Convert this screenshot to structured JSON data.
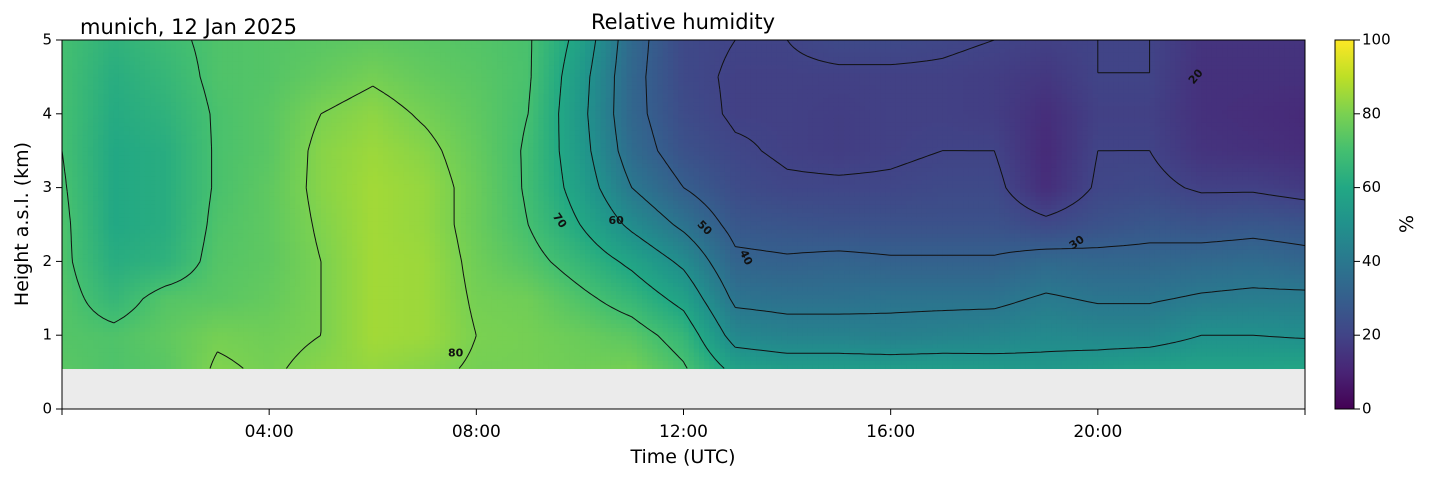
{
  "chart_data": {
    "type": "heatmap",
    "title": "Relative humidity",
    "location_date": "munich, 12 Jan 2025",
    "xlabel": "Time (UTC)",
    "ylabel": "Height a.s.l. (km)",
    "colorbar_label": "%",
    "colormap": "viridis",
    "x_range_hours": [
      0,
      24
    ],
    "ylim": [
      0,
      5
    ],
    "data_bottom_km": 0.55,
    "x_ticks": [
      "04:00",
      "08:00",
      "12:00",
      "16:00",
      "20:00"
    ],
    "y_ticks": [
      "0",
      "1",
      "2",
      "3",
      "4",
      "5"
    ],
    "colorbar_range": [
      0,
      100
    ],
    "colorbar_ticks": [
      "0",
      "20",
      "40",
      "60",
      "80",
      "100"
    ],
    "no_data_color": "#ebebeb",
    "contour_levels": [
      20,
      30,
      40,
      50,
      60,
      70,
      80
    ],
    "contour_labels": [
      "80",
      "70",
      "60",
      "50",
      "40",
      "30",
      "20"
    ],
    "profile_hours": [
      0,
      1,
      2,
      3,
      4,
      5,
      6,
      7,
      8,
      9,
      10,
      11,
      12,
      13,
      14,
      15,
      16,
      17,
      18,
      19,
      20,
      21,
      22,
      23,
      24
    ],
    "profile_heights_km": [
      0.55,
      1.0,
      1.5,
      2.0,
      2.5,
      3.0,
      3.5,
      4.0,
      4.5,
      5.0
    ],
    "rh_grid_percent": [
      [
        74,
        73,
        73,
        72,
        72,
        71,
        70,
        70,
        70,
        70
      ],
      [
        72,
        72,
        66,
        62,
        60,
        60,
        60,
        61,
        62,
        64
      ],
      [
        74,
        75,
        73,
        64,
        62,
        62,
        62,
        64,
        66,
        68
      ],
      [
        81,
        79,
        74,
        73,
        72,
        71,
        71,
        71,
        72,
        72
      ],
      [
        79,
        78,
        76,
        75,
        75,
        75,
        74,
        74,
        73,
        73
      ],
      [
        82,
        80,
        80,
        80,
        81,
        82,
        82,
        80,
        76,
        74
      ],
      [
        84,
        86,
        86,
        86,
        86,
        86,
        85,
        83,
        79,
        75
      ],
      [
        82,
        85,
        85,
        85,
        84,
        84,
        82,
        79,
        76,
        74
      ],
      [
        79,
        80,
        79,
        78,
        77,
        77,
        76,
        75,
        74,
        73
      ],
      [
        79,
        79,
        78,
        73,
        70,
        69,
        69,
        70,
        71,
        71
      ],
      [
        78,
        77,
        72,
        66,
        60,
        56,
        54,
        53,
        54,
        57
      ],
      [
        79,
        74,
        66,
        58,
        48,
        40,
        35,
        33,
        33,
        34
      ],
      [
        71,
        66,
        57,
        48,
        38,
        30,
        25,
        23,
        22,
        22
      ],
      [
        57,
        46,
        38,
        32,
        27,
        23,
        21,
        19,
        19,
        20
      ],
      [
        55,
        44,
        37,
        31,
        26,
        21,
        19,
        19,
        19,
        20
      ],
      [
        55,
        44,
        37,
        32,
        25,
        21,
        18,
        18,
        19,
        22
      ],
      [
        55,
        43,
        38,
        31,
        25,
        21,
        19,
        19,
        19,
        22
      ],
      [
        55,
        44,
        38,
        31,
        25,
        22,
        20,
        19,
        19,
        21
      ],
      [
        54,
        45,
        38,
        31,
        25,
        22,
        20,
        18,
        18,
        20
      ],
      [
        53,
        47,
        41,
        34,
        22,
        13,
        12,
        13,
        16,
        19
      ],
      [
        55,
        46,
        39,
        33,
        25,
        21,
        20,
        19,
        20,
        20
      ],
      [
        57,
        46,
        39,
        33,
        27,
        22,
        20,
        19,
        20,
        20
      ],
      [
        58,
        50,
        41,
        34,
        26,
        19,
        15,
        14,
        14,
        15
      ],
      [
        58,
        50,
        42,
        35,
        27,
        19,
        14,
        13,
        14,
        15
      ],
      [
        59,
        49,
        42,
        33,
        26,
        17,
        13,
        12,
        14,
        15
      ]
    ]
  }
}
